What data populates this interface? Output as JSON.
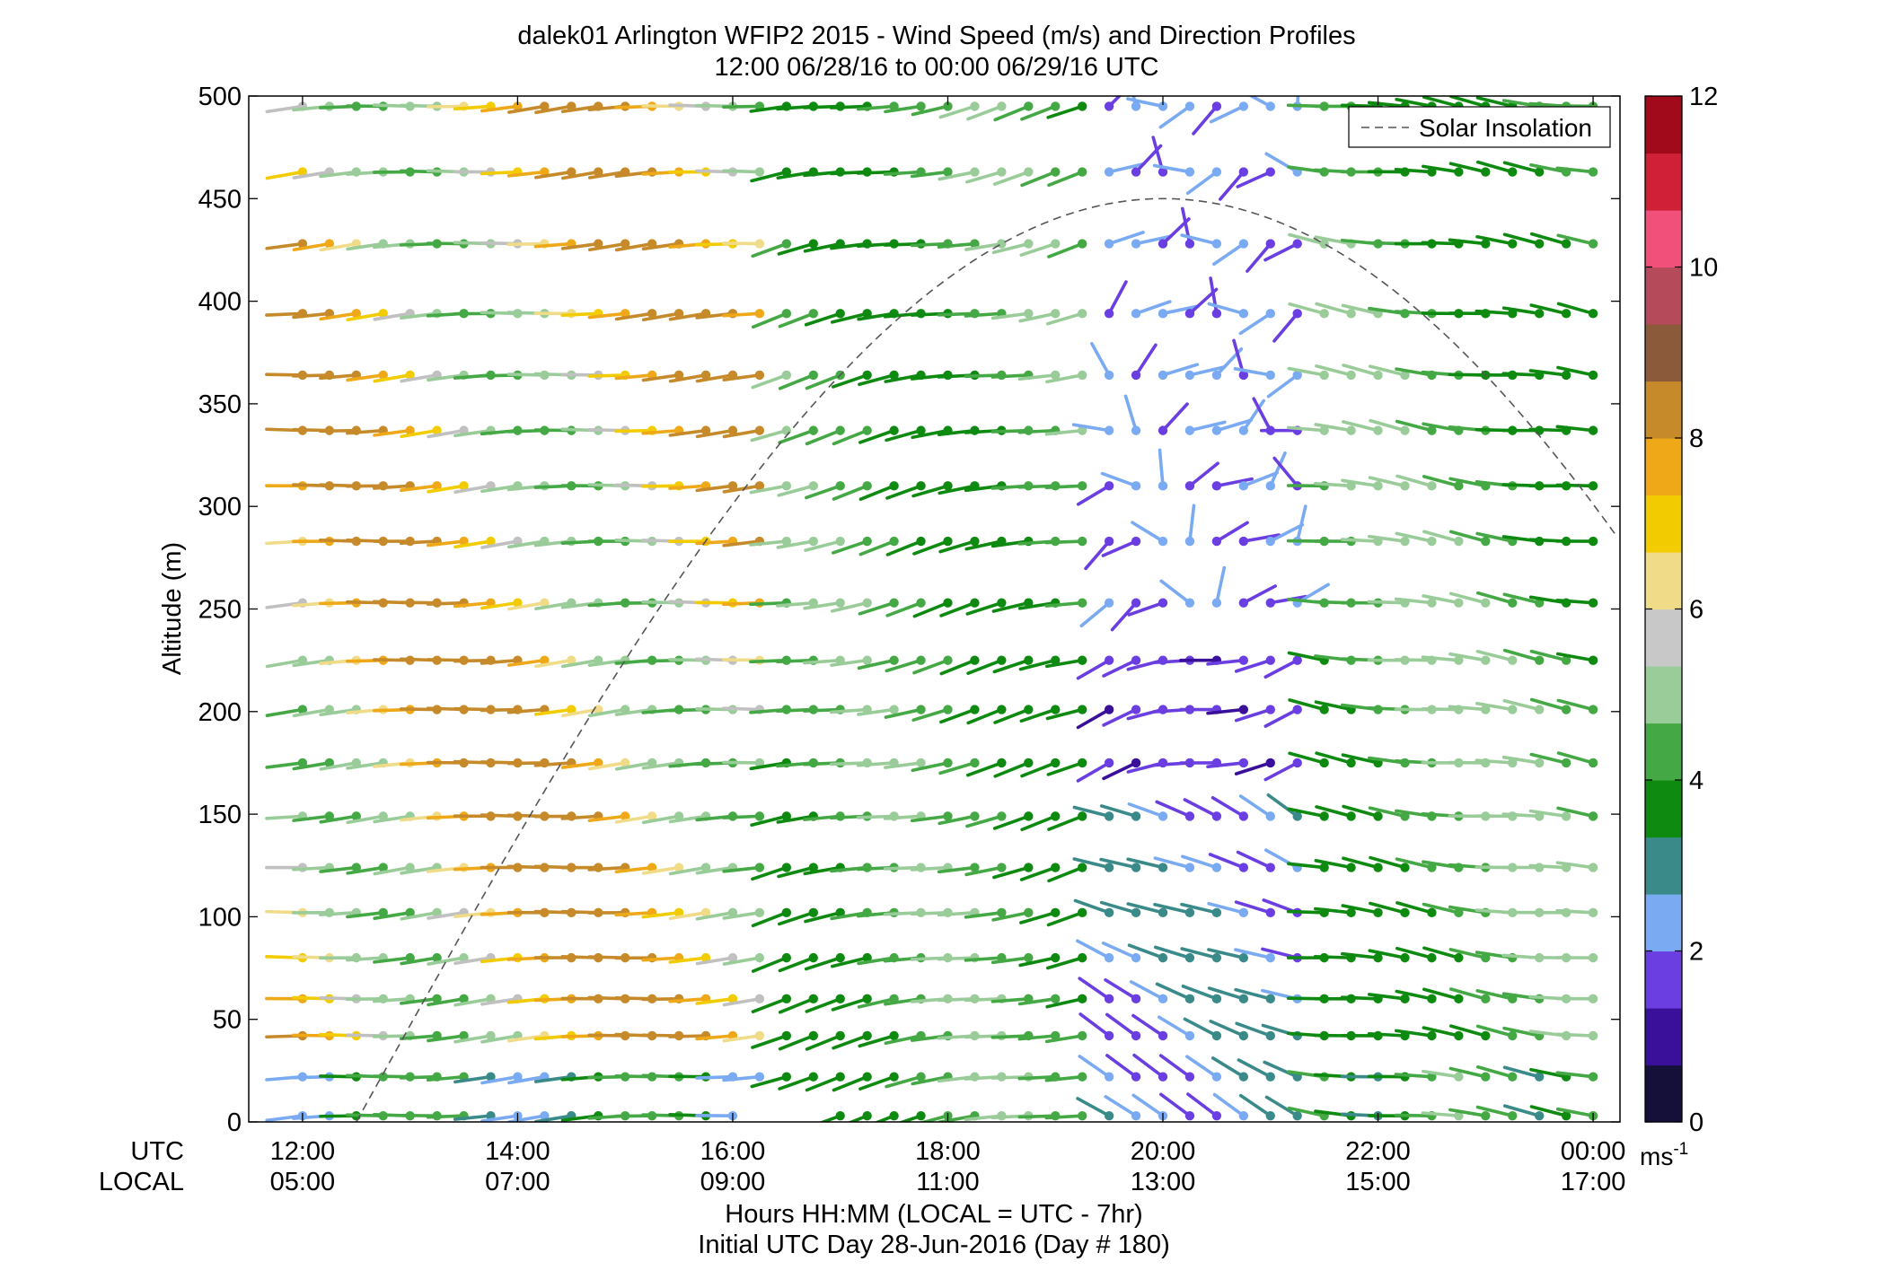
{
  "chart_data": {
    "type": "wind-barb profile",
    "title": "dalek01 Arlington WFIP2 2015 - Wind Speed (m/s) and Direction Profiles",
    "subtitle": "12:00 06/28/16 to 00:00 06/29/16  UTC",
    "ylabel": "Altitude (m)",
    "ylim": [
      0,
      500
    ],
    "yticks": [
      "0",
      "50",
      "100",
      "150",
      "200",
      "250",
      "300",
      "350",
      "400",
      "450",
      "500"
    ],
    "xlim_hours_utc": [
      11.5,
      24.25
    ],
    "xaxis_rows": [
      {
        "label": "UTC",
        "ticks": [
          "12:00",
          "14:00",
          "16:00",
          "18:00",
          "20:00",
          "22:00",
          "00:00"
        ]
      },
      {
        "label": "LOCAL",
        "ticks": [
          "05:00",
          "07:00",
          "09:00",
          "11:00",
          "13:00",
          "15:00",
          "17:00"
        ]
      }
    ],
    "tick_hours_utc": [
      12,
      14,
      16,
      18,
      20,
      22,
      24
    ],
    "xlabel_line1": "Hours HH:MM  (LOCAL = UTC - 7hr)",
    "xlabel_line2": "Initial UTC Day 28-Jun-2016 (Day # 180)",
    "legend": {
      "label": "Solar Insolation",
      "position": "top-right",
      "style": "dashed gray line"
    },
    "colorbar": {
      "ticks": [
        "0",
        "2",
        "4",
        "6",
        "8",
        "10",
        "12"
      ],
      "range": [
        0,
        12
      ],
      "unit_base": "ms",
      "unit_exp": "-1",
      "colors": [
        "#14103a",
        "#3a109a",
        "#6a3ee0",
        "#7aaaf2",
        "#3a8a8a",
        "#0e8a10",
        "#44a844",
        "#9acc9a",
        "#c8c8c8",
        "#f0dc88",
        "#f2cc00",
        "#eea818",
        "#c68a2a",
        "#8a5a3a",
        "#b44a5a",
        "#f0507a",
        "#d02038",
        "#a00a1a"
      ]
    },
    "altitudes_m": [
      3,
      22,
      42,
      60,
      80,
      102,
      124,
      149,
      175,
      201,
      225,
      253,
      283,
      310,
      337,
      364,
      394,
      428,
      463,
      495
    ],
    "time_step_hours": 0.25,
    "solar_insolation_curve": {
      "peak_hour_utc": 20.0,
      "peak_altitude_equiv_m": 450,
      "sunrise_hour_utc": 12.5
    },
    "wind_regimes": [
      {
        "hours_utc": [
          12.0,
          16.5
        ],
        "levels": "most",
        "direction": "westerly",
        "speed_ms": [
          6,
          9
        ]
      },
      {
        "hours_utc": [
          16.5,
          19.5
        ],
        "levels": "most",
        "direction": "westerly",
        "speed_ms": [
          3,
          5
        ]
      },
      {
        "hours_utc": [
          19.5,
          21.5
        ],
        "levels": "upper",
        "direction": "variable / northerly",
        "speed_ms": [
          0.5,
          2.5
        ]
      },
      {
        "hours_utc": [
          19.5,
          21.5
        ],
        "levels": "lower",
        "direction": "northwesterly",
        "speed_ms": [
          1.5,
          3
        ]
      },
      {
        "hours_utc": [
          21.5,
          24.0
        ],
        "levels": "most",
        "direction": "westerly",
        "speed_ms": [
          3,
          5
        ]
      }
    ]
  }
}
